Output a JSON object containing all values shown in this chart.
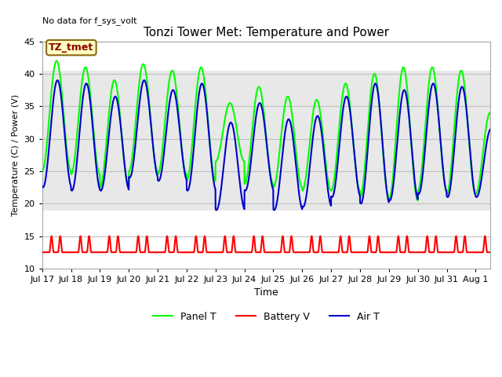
{
  "title": "Tonzi Tower Met: Temperature and Power",
  "ylabel": "Temperature (C) / Power (V)",
  "xlabel": "Time",
  "ylim": [
    10,
    45
  ],
  "xlim": [
    0,
    15.5
  ],
  "yticks": [
    10,
    15,
    20,
    25,
    30,
    35,
    40,
    45
  ],
  "xtick_labels": [
    "Jul 17",
    "Jul 18",
    "Jul 19",
    "Jul 20",
    "Jul 21",
    "Jul 22",
    "Jul 23",
    "Jul 24",
    "Jul 25",
    "Jul 26",
    "Jul 27",
    "Jul 28",
    "Jul 29",
    "Jul 30",
    "Jul 31",
    "Aug 1"
  ],
  "xtick_positions": [
    0,
    1,
    2,
    3,
    4,
    5,
    6,
    7,
    8,
    9,
    10,
    11,
    12,
    13,
    14,
    15
  ],
  "no_data_text": "No data for f_sys_volt",
  "annotation_label": "TZ_tmet",
  "gray_band_ymin": 19.0,
  "gray_band_ymax": 40.5,
  "panel_t_color": "#00FF00",
  "battery_v_color": "#FF0000",
  "air_t_color": "#0000CC",
  "legend_labels": [
    "Panel T",
    "Battery V",
    "Air T"
  ],
  "panel_t_linewidth": 1.5,
  "battery_v_linewidth": 1.5,
  "air_t_linewidth": 1.5,
  "panel_peaks": [
    42,
    41,
    39,
    41.5,
    40.5,
    41,
    35.5,
    38,
    36.5,
    36,
    38.5,
    40,
    41,
    41,
    40.5,
    34
  ],
  "panel_troughs": [
    25,
    24.5,
    22.5,
    25,
    24.5,
    23.5,
    26.5,
    23,
    22.5,
    22,
    22,
    21,
    20.5,
    22,
    21.5,
    21.5
  ],
  "air_peaks": [
    39,
    38.5,
    36.5,
    39,
    37.5,
    38.5,
    32.5,
    35.5,
    33,
    33.5,
    36.5,
    38.5,
    37.5,
    38.5,
    38,
    31.5
  ],
  "air_troughs": [
    22.5,
    22,
    22,
    24,
    23.5,
    22,
    19,
    22,
    19,
    19.5,
    21,
    20,
    20.5,
    21.5,
    21,
    21
  ],
  "batt_baseline": 12.5,
  "batt_peak": 15.0
}
